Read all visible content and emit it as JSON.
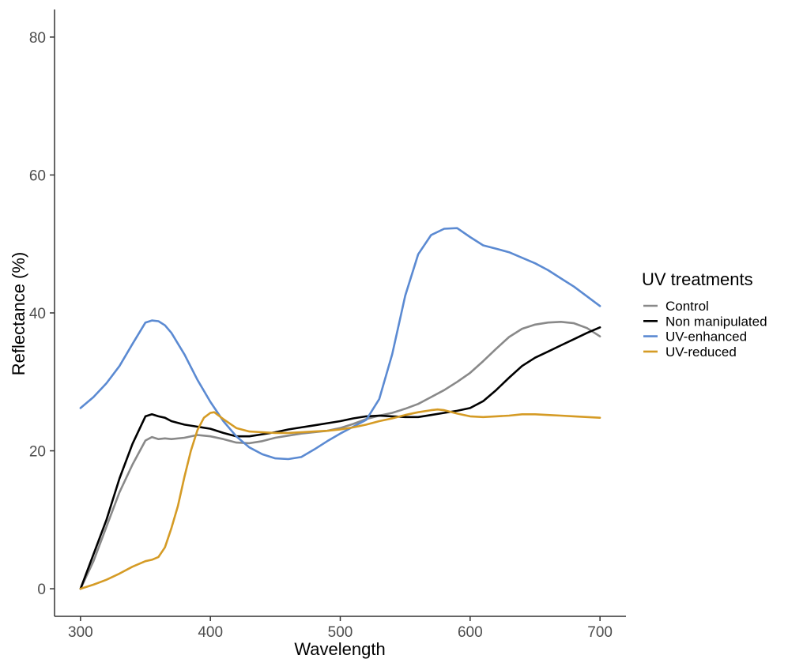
{
  "chart_data": {
    "type": "line",
    "xlabel": "Wavelength",
    "ylabel": "Reflectance (%)",
    "xlim": [
      280,
      720
    ],
    "ylim": [
      -4,
      84
    ],
    "xticks": [
      300,
      400,
      500,
      600,
      700
    ],
    "yticks": [
      0,
      20,
      40,
      60,
      80
    ],
    "grid": false,
    "legend": {
      "title": "UV treatments",
      "position": "right"
    },
    "series": [
      {
        "name": "Control",
        "color": "#898989",
        "x": [
          300,
          310,
          320,
          330,
          340,
          350,
          355,
          360,
          365,
          370,
          380,
          390,
          400,
          410,
          420,
          430,
          440,
          450,
          460,
          470,
          480,
          490,
          500,
          510,
          520,
          530,
          540,
          550,
          560,
          570,
          580,
          590,
          600,
          610,
          620,
          630,
          640,
          650,
          660,
          670,
          680,
          690,
          700
        ],
        "y": [
          0,
          4,
          9,
          14,
          18,
          21.5,
          22,
          21.7,
          21.8,
          21.7,
          21.9,
          22.3,
          22.1,
          21.7,
          21.2,
          21.1,
          21.4,
          21.9,
          22.2,
          22.5,
          22.7,
          22.9,
          23.3,
          23.9,
          24.6,
          25.1,
          25.5,
          26.1,
          26.8,
          27.8,
          28.8,
          30,
          31.3,
          33,
          34.8,
          36.5,
          37.7,
          38.3,
          38.6,
          38.7,
          38.5,
          37.8,
          36.6
        ]
      },
      {
        "name": "Non manipulated",
        "color": "#000000",
        "x": [
          300,
          310,
          320,
          330,
          340,
          350,
          355,
          360,
          365,
          370,
          380,
          390,
          400,
          410,
          420,
          430,
          440,
          450,
          460,
          470,
          480,
          490,
          500,
          510,
          520,
          530,
          540,
          550,
          560,
          570,
          580,
          590,
          600,
          610,
          620,
          630,
          640,
          650,
          660,
          670,
          680,
          690,
          700
        ],
        "y": [
          0,
          5,
          10,
          16,
          21,
          25,
          25.3,
          25,
          24.8,
          24.3,
          23.8,
          23.5,
          23.2,
          22.6,
          22.1,
          22.1,
          22.4,
          22.7,
          23.1,
          23.4,
          23.7,
          24.0,
          24.3,
          24.7,
          25.0,
          25.1,
          25.0,
          24.9,
          24.9,
          25.2,
          25.5,
          25.8,
          26.2,
          27.2,
          28.8,
          30.6,
          32.3,
          33.5,
          34.4,
          35.3,
          36.2,
          37.1,
          37.9
        ]
      },
      {
        "name": "UV-enhanced",
        "color": "#5b8ad2",
        "x": [
          300,
          310,
          320,
          330,
          340,
          350,
          355,
          360,
          365,
          370,
          380,
          390,
          400,
          410,
          420,
          430,
          440,
          450,
          460,
          470,
          480,
          490,
          500,
          510,
          520,
          530,
          540,
          550,
          560,
          570,
          580,
          590,
          600,
          610,
          620,
          630,
          640,
          650,
          660,
          670,
          680,
          690,
          700
        ],
        "y": [
          26.2,
          27.8,
          29.8,
          32.3,
          35.5,
          38.6,
          38.9,
          38.8,
          38.2,
          37.1,
          34,
          30.3,
          27.1,
          24.3,
          22.1,
          20.5,
          19.5,
          18.9,
          18.8,
          19.1,
          20.2,
          21.4,
          22.5,
          23.5,
          24.5,
          27.5,
          34,
          42.5,
          48.5,
          51.3,
          52.2,
          52.3,
          51,
          49.8,
          49.3,
          48.8,
          48,
          47.2,
          46.2,
          45,
          43.8,
          42.4,
          41
        ]
      },
      {
        "name": "UV-reduced",
        "color": "#d59b25",
        "x": [
          300,
          310,
          320,
          330,
          340,
          350,
          355,
          360,
          365,
          370,
          375,
          380,
          385,
          390,
          395,
          400,
          403,
          410,
          420,
          430,
          440,
          450,
          460,
          470,
          480,
          490,
          500,
          510,
          520,
          530,
          540,
          550,
          560,
          570,
          575,
          580,
          590,
          600,
          610,
          620,
          630,
          640,
          650,
          660,
          670,
          680,
          690,
          700
        ],
        "y": [
          0,
          0.6,
          1.3,
          2.2,
          3.2,
          4,
          4.2,
          4.6,
          6,
          8.8,
          12,
          16.2,
          20,
          23,
          24.8,
          25.5,
          25.6,
          24.6,
          23.3,
          22.8,
          22.7,
          22.6,
          22.6,
          22.7,
          22.8,
          22.9,
          23.1,
          23.4,
          23.8,
          24.3,
          24.7,
          25.2,
          25.6,
          25.9,
          26,
          25.9,
          25.4,
          25,
          24.9,
          25,
          25.1,
          25.3,
          25.3,
          25.2,
          25.1,
          25,
          24.9,
          24.8
        ]
      }
    ]
  }
}
